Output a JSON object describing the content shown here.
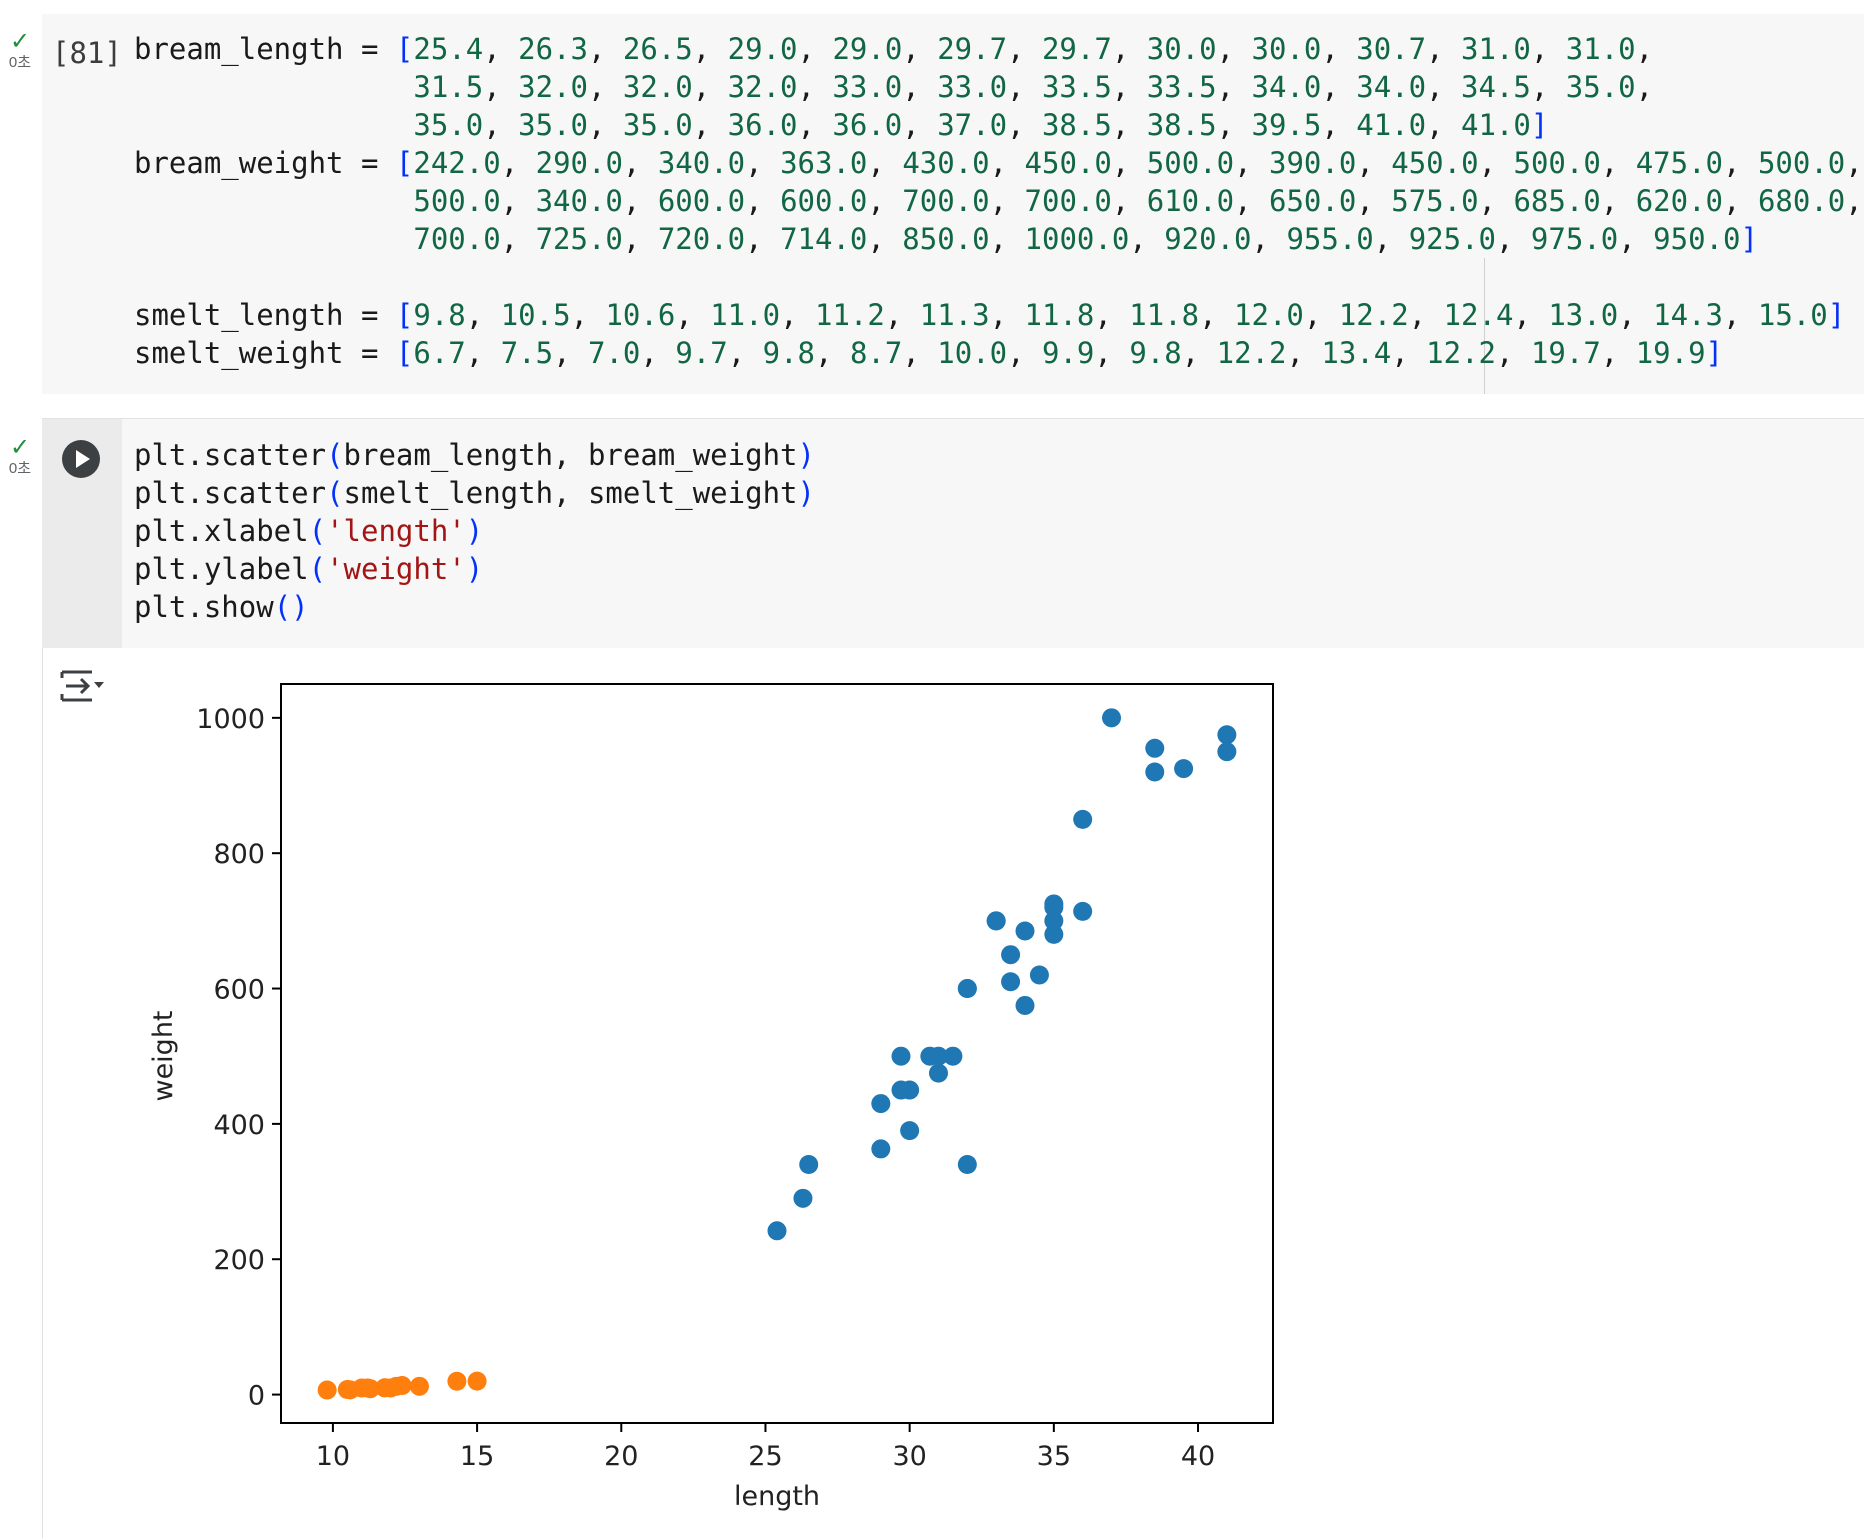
{
  "cells": [
    {
      "status": {
        "check": "✓",
        "time": "0초"
      },
      "prompt": "[81]",
      "code": {
        "bream_length_name": "bream_length",
        "bream_length": [
          "25.4",
          "26.3",
          "26.5",
          "29.0",
          "29.0",
          "29.7",
          "29.7",
          "30.0",
          "30.0",
          "30.7",
          "31.0",
          "31.0",
          "31.5",
          "32.0",
          "32.0",
          "32.0",
          "33.0",
          "33.0",
          "33.5",
          "33.5",
          "34.0",
          "34.0",
          "34.5",
          "35.0",
          "35.0",
          "35.0",
          "35.0",
          "36.0",
          "36.0",
          "37.0",
          "38.5",
          "38.5",
          "39.5",
          "41.0",
          "41.0"
        ],
        "bream_weight_name": "bream_weight",
        "bream_weight": [
          "242.0",
          "290.0",
          "340.0",
          "363.0",
          "430.0",
          "450.0",
          "500.0",
          "390.0",
          "450.0",
          "500.0",
          "475.0",
          "500.0",
          "500.0",
          "340.0",
          "600.0",
          "600.0",
          "700.0",
          "700.0",
          "610.0",
          "650.0",
          "575.0",
          "685.0",
          "620.0",
          "680.0",
          "700.0",
          "725.0",
          "720.0",
          "714.0",
          "850.0",
          "1000.0",
          "920.0",
          "955.0",
          "925.0",
          "975.0",
          "950.0"
        ],
        "smelt_length_name": "smelt_length",
        "smelt_length": [
          "9.8",
          "10.5",
          "10.6",
          "11.0",
          "11.2",
          "11.3",
          "11.8",
          "11.8",
          "12.0",
          "12.2",
          "12.4",
          "13.0",
          "14.3",
          "15.0"
        ],
        "smelt_weight_name": "smelt_weight",
        "smelt_weight": [
          "6.7",
          "7.5",
          "7.0",
          "9.7",
          "9.8",
          "8.7",
          "10.0",
          "9.9",
          "9.8",
          "12.2",
          "13.4",
          "12.2",
          "19.7",
          "19.9"
        ]
      }
    },
    {
      "status": {
        "check": "✓",
        "time": "0초"
      },
      "run_button": "run",
      "code": {
        "l1_fn": "plt.scatter",
        "l1_a1": "bream_length",
        "l1_a2": "bream_weight",
        "l2_fn": "plt.scatter",
        "l2_a1": "smelt_length",
        "l2_a2": "smelt_weight",
        "l3_fn": "plt.xlabel",
        "l3_str": "'length'",
        "l4_fn": "plt.ylabel",
        "l4_str": "'weight'",
        "l5_fn": "plt.show"
      }
    }
  ],
  "output_icon": "output-actions-icon",
  "chart_data": {
    "type": "scatter",
    "title": "",
    "xlabel": "length",
    "ylabel": "weight",
    "xlim": [
      8.2,
      42.6
    ],
    "ylim": [
      -42,
      1050
    ],
    "xticks": [
      10,
      15,
      20,
      25,
      30,
      35,
      40
    ],
    "yticks": [
      0,
      200,
      400,
      600,
      800,
      1000
    ],
    "grid": false,
    "colors": {
      "bream": "#1f77b4",
      "smelt": "#ff7f0e"
    },
    "series": [
      {
        "x": [
          25.4,
          26.3,
          26.5,
          29.0,
          29.0,
          29.7,
          29.7,
          30.0,
          30.0,
          30.7,
          31.0,
          31.0,
          31.5,
          32.0,
          32.0,
          32.0,
          33.0,
          33.0,
          33.5,
          33.5,
          34.0,
          34.0,
          34.5,
          35.0,
          35.0,
          35.0,
          35.0,
          36.0,
          36.0,
          37.0,
          38.5,
          38.5,
          39.5,
          41.0,
          41.0
        ],
        "y": [
          242,
          290,
          340,
          363,
          430,
          450,
          500,
          390,
          450,
          500,
          475,
          500,
          500,
          340,
          600,
          600,
          700,
          700,
          610,
          650,
          575,
          685,
          620,
          680,
          700,
          725,
          720,
          714,
          850,
          1000,
          920,
          955,
          925,
          975,
          950
        ]
      },
      {
        "x": [
          9.8,
          10.5,
          10.6,
          11.0,
          11.2,
          11.3,
          11.8,
          11.8,
          12.0,
          12.2,
          12.4,
          13.0,
          14.3,
          15.0
        ],
        "y": [
          6.7,
          7.5,
          7.0,
          9.7,
          9.8,
          8.7,
          10.0,
          9.9,
          9.8,
          12.2,
          13.4,
          12.2,
          19.7,
          19.9
        ]
      }
    ]
  }
}
